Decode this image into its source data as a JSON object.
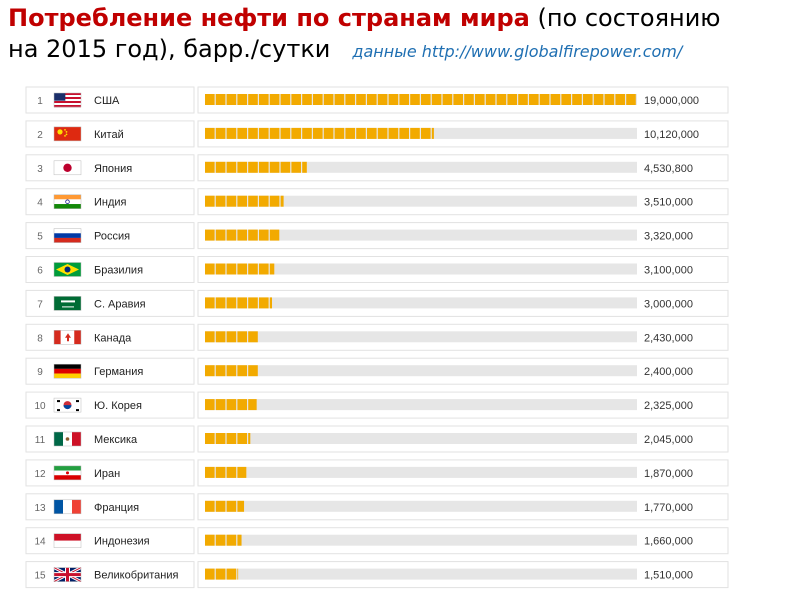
{
  "title": {
    "main": "Потребление нефти по странам мира",
    "tail1": " (по состоянию",
    "line2": "на 2015 год), барр./сутки",
    "source": "данные http://www.globalfirepower.com/"
  },
  "chart_data": {
    "type": "bar",
    "orientation": "horizontal",
    "title": "Потребление нефти по странам мира (по состоянию на 2015 год), барр./сутки",
    "xlim": [
      0,
      19000000
    ],
    "grid": false,
    "legend": "none",
    "bar_color": "#f2aa00",
    "track_color": "#e6e6e6",
    "rows": [
      {
        "rank": "1",
        "country": "США",
        "flag": "flag-usa",
        "value": 19000000,
        "label": "19,000,000"
      },
      {
        "rank": "2",
        "country": "Китай",
        "flag": "flag-china",
        "value": 10120000,
        "label": "10,120,000"
      },
      {
        "rank": "3",
        "country": "Япония",
        "flag": "flag-japan",
        "value": 4530800,
        "label": "4,530,800"
      },
      {
        "rank": "4",
        "country": "Индия",
        "flag": "flag-india",
        "value": 3510000,
        "label": "3,510,000"
      },
      {
        "rank": "5",
        "country": "Россия",
        "flag": "flag-russia",
        "value": 3320000,
        "label": "3,320,000"
      },
      {
        "rank": "6",
        "country": "Бразилия",
        "flag": "flag-brazil",
        "value": 3100000,
        "label": "3,100,000"
      },
      {
        "rank": "7",
        "country": "С. Аравия",
        "flag": "flag-saudi-arabia",
        "value": 3000000,
        "label": "3,000,000"
      },
      {
        "rank": "8",
        "country": "Канада",
        "flag": "flag-canada",
        "value": 2430000,
        "label": "2,430,000"
      },
      {
        "rank": "9",
        "country": "Германия",
        "flag": "flag-germany",
        "value": 2400000,
        "label": "2,400,000"
      },
      {
        "rank": "10",
        "country": "Ю. Корея",
        "flag": "flag-south-korea",
        "value": 2325000,
        "label": "2,325,000"
      },
      {
        "rank": "11",
        "country": "Мексика",
        "flag": "flag-mexico",
        "value": 2045000,
        "label": "2,045,000"
      },
      {
        "rank": "12",
        "country": "Иран",
        "flag": "flag-iran",
        "value": 1870000,
        "label": "1,870,000"
      },
      {
        "rank": "13",
        "country": "Франция",
        "flag": "flag-france",
        "value": 1770000,
        "label": "1,770,000"
      },
      {
        "rank": "14",
        "country": "Индонезия",
        "flag": "flag-indonesia",
        "value": 1660000,
        "label": "1,660,000"
      },
      {
        "rank": "15",
        "country": "Великобритания",
        "flag": "flag-uk",
        "value": 1510000,
        "label": "1,510,000"
      }
    ]
  }
}
